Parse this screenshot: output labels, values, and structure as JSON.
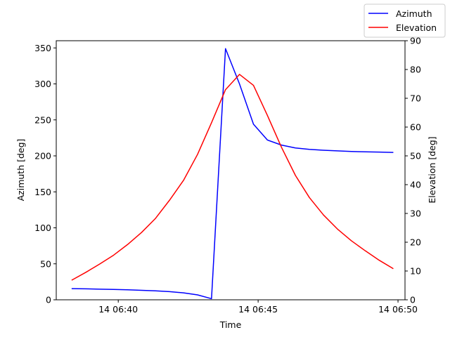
{
  "chart_data": {
    "type": "line",
    "xlabel": "Time",
    "x": [
      "06:38:20",
      "06:38:50",
      "06:39:20",
      "06:39:50",
      "06:40:20",
      "06:40:50",
      "06:41:20",
      "06:41:50",
      "06:42:20",
      "06:42:50",
      "06:43:20",
      "06:43:50",
      "06:44:20",
      "06:44:50",
      "06:45:20",
      "06:45:50",
      "06:46:20",
      "06:46:50",
      "06:47:20",
      "06:47:50",
      "06:48:20",
      "06:48:50",
      "06:49:20",
      "06:49:50"
    ],
    "x_date_prefix": "14",
    "xlim": [
      "06:37:47",
      "06:50:15"
    ],
    "xticks": [
      {
        "time": "06:40:00",
        "label": "14 06:40"
      },
      {
        "time": "06:45:00",
        "label": "14 06:45"
      },
      {
        "time": "06:50:00",
        "label": "14 06:50"
      }
    ],
    "series": [
      {
        "name": "Azimuth",
        "axis": "left",
        "color": "#0000ff",
        "values": [
          15.5,
          15.2,
          14.8,
          14.4,
          13.9,
          13.2,
          12.4,
          11.3,
          9.6,
          6.8,
          1.5,
          349,
          300,
          244,
          222,
          215,
          211,
          209,
          207.8,
          206.9,
          206.1,
          205.6,
          205.2,
          204.8
        ]
      },
      {
        "name": "Elevation",
        "axis": "right",
        "color": "#ff0000",
        "values": [
          6.8,
          9.5,
          12.4,
          15.5,
          19.2,
          23.4,
          28.3,
          34.6,
          41.5,
          50.5,
          61.5,
          73,
          78.3,
          74.5,
          64,
          53,
          43.2,
          35.5,
          29.5,
          24.6,
          20.5,
          17,
          13.7,
          10.8
        ]
      }
    ],
    "yleft": {
      "label": "Azimuth [deg]",
      "ylim": [
        0,
        360
      ],
      "ticks": [
        0,
        50,
        100,
        150,
        200,
        250,
        300,
        350
      ]
    },
    "yright": {
      "label": "Elevation [deg]",
      "ylim": [
        0,
        90
      ],
      "ticks": [
        0,
        10,
        20,
        30,
        40,
        50,
        60,
        70,
        80,
        90
      ]
    },
    "legend": {
      "placement": "top-right"
    },
    "grid": false
  }
}
